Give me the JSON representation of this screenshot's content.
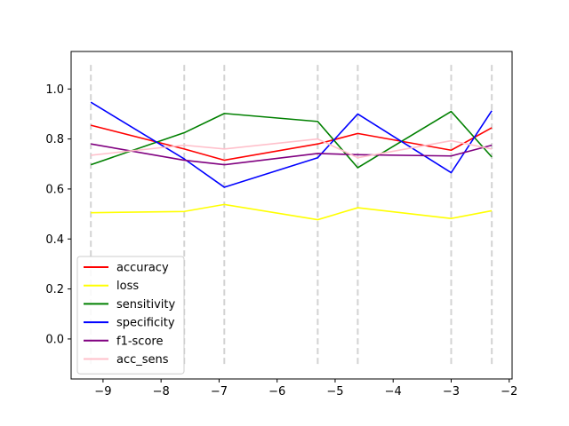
{
  "chart_data": {
    "type": "line",
    "title": "",
    "xlabel": "",
    "ylabel": "",
    "xlim": [
      -9.55,
      -1.95
    ],
    "ylim": [
      -0.16,
      1.15
    ],
    "x_ticks": [
      -9,
      -8,
      -7,
      -6,
      -5,
      -4,
      -3,
      -2
    ],
    "x_tick_labels": [
      "−9",
      "−8",
      "−7",
      "−6",
      "−5",
      "−4",
      "−3",
      "−2"
    ],
    "y_ticks": [
      0.0,
      0.2,
      0.4,
      0.6,
      0.8,
      1.0
    ],
    "y_tick_labels": [
      "0.0",
      "0.2",
      "0.4",
      "0.6",
      "0.8",
      "1.0"
    ],
    "grid": false,
    "legend_position": "lower-left",
    "vlines": {
      "x": [
        -9.21,
        -7.6,
        -6.91,
        -5.3,
        -4.61,
        -3.0,
        -2.3
      ],
      "ymin": -0.1,
      "ymax": 1.1,
      "color": "#d3d3d3",
      "style": "dashed"
    },
    "x": [
      -9.21,
      -7.6,
      -6.91,
      -5.3,
      -4.61,
      -3.0,
      -2.3
    ],
    "series": [
      {
        "name": "accuracy",
        "color": "#ff0000",
        "values": [
          0.855,
          0.76,
          0.715,
          0.78,
          0.822,
          0.755,
          0.845
        ]
      },
      {
        "name": "loss",
        "color": "#ffff00",
        "values": [
          0.505,
          0.51,
          0.538,
          0.477,
          0.525,
          0.482,
          0.513
        ]
      },
      {
        "name": "sensitivity",
        "color": "#008000",
        "values": [
          0.697,
          0.825,
          0.902,
          0.87,
          0.685,
          0.91,
          0.728
        ]
      },
      {
        "name": "specificity",
        "color": "#0000ff",
        "values": [
          0.947,
          0.72,
          0.607,
          0.725,
          0.9,
          0.665,
          0.913
        ]
      },
      {
        "name": "f1-score",
        "color": "#800080",
        "values": [
          0.78,
          0.715,
          0.697,
          0.742,
          0.737,
          0.732,
          0.775
        ]
      },
      {
        "name": "acc_sens",
        "color": "#ffc0cb",
        "values": [
          0.735,
          0.775,
          0.76,
          0.8,
          0.725,
          0.793,
          0.76
        ]
      }
    ]
  }
}
